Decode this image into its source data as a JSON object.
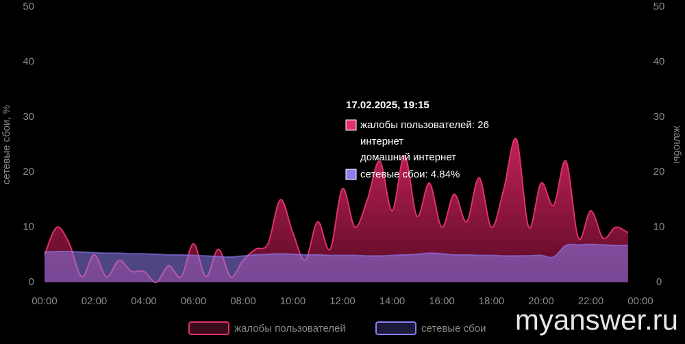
{
  "chart_data": {
    "type": "area",
    "y_label": "сетевые сбои, %",
    "y2_label": "жалобы",
    "x": [
      0,
      0.5,
      1,
      1.5,
      2,
      2.5,
      3,
      3.5,
      4,
      4.5,
      5,
      5.5,
      6,
      6.5,
      7,
      7.5,
      8,
      8.5,
      9,
      9.5,
      10,
      10.5,
      11,
      11.5,
      12,
      12.5,
      13,
      13.5,
      14,
      14.5,
      15,
      15.5,
      16,
      16.5,
      17,
      17.5,
      18,
      18.5,
      19,
      19.5,
      20,
      20.5,
      21,
      21.5,
      22,
      22.5,
      23,
      23.5
    ],
    "xlim": [
      0,
      24
    ],
    "xticks": [
      {
        "value": 0,
        "label": "00:00"
      },
      {
        "value": 2,
        "label": "02:00"
      },
      {
        "value": 4,
        "label": "04:00"
      },
      {
        "value": 6,
        "label": "06:00"
      },
      {
        "value": 8,
        "label": "08:00"
      },
      {
        "value": 10,
        "label": "10:00"
      },
      {
        "value": 12,
        "label": "12:00"
      },
      {
        "value": 14,
        "label": "14:00"
      },
      {
        "value": 16,
        "label": "16:00"
      },
      {
        "value": 18,
        "label": "18:00"
      },
      {
        "value": 20,
        "label": "20:00"
      },
      {
        "value": 22,
        "label": "22:00"
      },
      {
        "value": 24,
        "label": "00:00"
      }
    ],
    "ylim": [
      0,
      50
    ],
    "yticks": [
      0,
      10,
      20,
      30,
      40,
      50
    ],
    "y2lim": [
      0,
      50
    ],
    "y2ticks": [
      0,
      10,
      20,
      30,
      40,
      50
    ],
    "series": [
      {
        "name": "жалобы пользователей",
        "color": "#e0306a",
        "axis": "y2",
        "values": [
          5,
          10,
          7,
          1,
          5,
          1,
          4,
          2,
          2,
          0,
          3,
          1,
          7,
          1,
          6,
          1,
          4,
          6,
          7,
          15,
          9,
          4,
          11,
          6,
          17,
          10,
          15,
          22,
          13,
          23,
          12,
          18,
          10,
          16,
          11,
          19,
          10,
          17,
          26,
          10,
          18,
          14,
          22,
          8,
          13,
          8,
          10,
          9
        ]
      },
      {
        "name": "сетевые сбои",
        "color": "#8f7cf0",
        "values": [
          5.5,
          5.6,
          5.6,
          5.5,
          5.4,
          5.3,
          5.3,
          5.2,
          5.2,
          5.1,
          5.0,
          5.0,
          4.9,
          4.8,
          4.7,
          4.6,
          4.8,
          5.0,
          5.1,
          5.2,
          5.1,
          5.0,
          5.0,
          4.9,
          4.9,
          4.9,
          4.8,
          4.8,
          4.9,
          5.0,
          5.1,
          5.3,
          5.2,
          5.0,
          5.0,
          4.9,
          4.9,
          4.8,
          4.8,
          4.84,
          4.9,
          4.6,
          6.7,
          6.8,
          6.9,
          6.8,
          6.7,
          6.7
        ]
      }
    ],
    "tooltip": {
      "title": "17.02.2025, 19:15",
      "lines": [
        "жалобы пользователей: 26",
        "интернет",
        "домашний интернет",
        "сетевые сбои: 4.84%"
      ]
    },
    "watermark": "myanswer.ru"
  }
}
